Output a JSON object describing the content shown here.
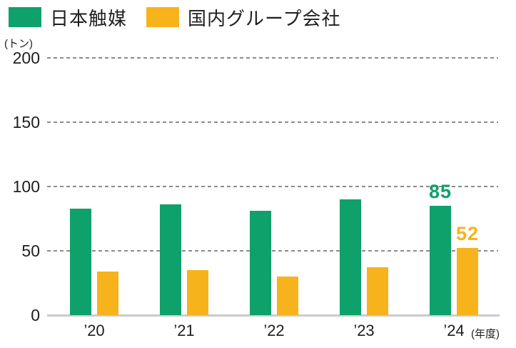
{
  "legend": {
    "items": [
      {
        "label": "日本触媒"
      },
      {
        "label": "国内グループ会社"
      }
    ]
  },
  "chart_data": {
    "type": "bar",
    "title": "",
    "unit_label": "(トン)",
    "x_suffix_label": "(年度)",
    "categories": [
      "’20",
      "’21",
      "’22",
      "’23",
      "’24"
    ],
    "category_names": [
      "2020",
      "2021",
      "2022",
      "2023",
      "2024"
    ],
    "series": [
      {
        "name": "日本触媒",
        "slug": "nihon-shokubai",
        "color": "#0FA16B",
        "values": [
          83,
          86,
          81,
          90,
          85
        ],
        "value_labels": [
          null,
          null,
          null,
          null,
          "85"
        ]
      },
      {
        "name": "国内グループ会社",
        "slug": "domestic-group",
        "color": "#F7B31C",
        "values": [
          34,
          35,
          30,
          37,
          52
        ],
        "value_labels": [
          null,
          null,
          null,
          null,
          "52"
        ]
      }
    ],
    "ylim": [
      0,
      200
    ],
    "yticks": [
      0,
      50,
      100,
      150,
      200
    ],
    "grid": "horizontal-dashed",
    "legend_position": "top-left",
    "colors": {
      "grid": "#8C8C8C",
      "baseline": "#CBCBCB",
      "text": "#1E1E1E"
    }
  }
}
